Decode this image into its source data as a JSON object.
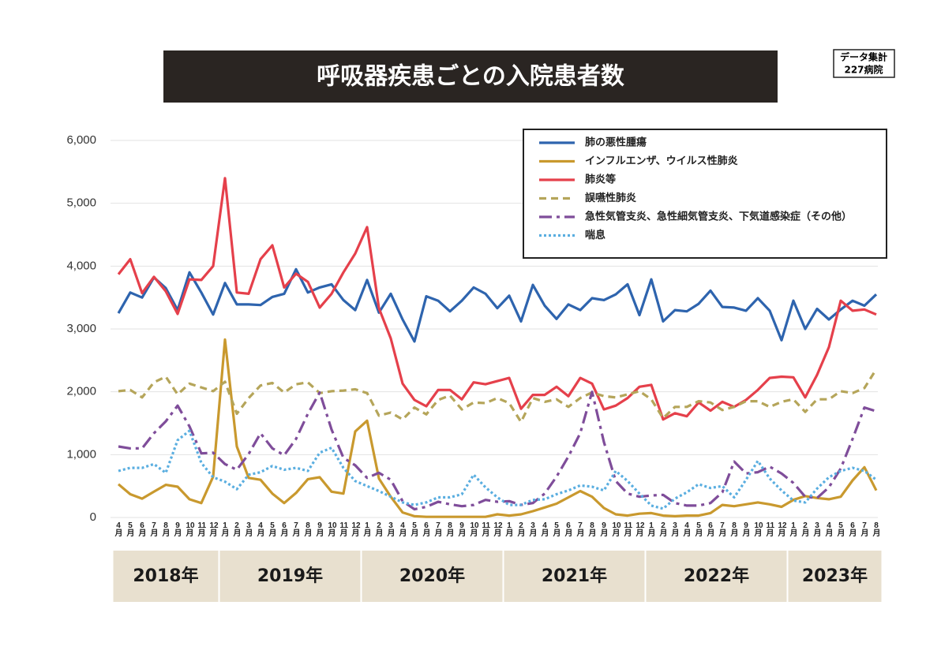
{
  "chart_data": {
    "type": "line",
    "title": "呼吸器疾患ごとの入院患者数",
    "annotation": [
      "データ集計",
      "227病院"
    ],
    "categories": [
      "4月",
      "5月",
      "6月",
      "7月",
      "8月",
      "9月",
      "10月",
      "11月",
      "12月",
      "1月",
      "2月",
      "3月",
      "4月",
      "5月",
      "6月",
      "7月",
      "8月",
      "9月",
      "10月",
      "11月",
      "12月",
      "1月",
      "2月",
      "3月",
      "4月",
      "5月",
      "6月",
      "7月",
      "8月",
      "9月",
      "10月",
      "11月",
      "12月",
      "1月",
      "2月",
      "3月",
      "4月",
      "5月",
      "6月",
      "7月",
      "8月",
      "9月",
      "10月",
      "11月",
      "12月",
      "1月",
      "2月",
      "3月",
      "4月",
      "5月",
      "6月",
      "7月",
      "8月",
      "9月",
      "10月",
      "11月",
      "12月",
      "1月",
      "2月",
      "3月",
      "4月",
      "5月",
      "6月",
      "7月",
      "8月"
    ],
    "years": [
      "2018年",
      "2019年",
      "2020年",
      "2021年",
      "2022年",
      "2023年"
    ],
    "ylim": [
      0,
      6000
    ],
    "yticks": [
      0,
      {
        "value": 1000,
        "label": "1,000"
      },
      {
        "value": 2000,
        "label": "2,000"
      },
      {
        "value": 3000,
        "label": "3,000"
      },
      {
        "value": 4000,
        "label": "4,000"
      },
      {
        "value": 5000,
        "label": "5,000"
      },
      {
        "value": 6000,
        "label": "6,000"
      }
    ],
    "grid": true,
    "legend": "top-right",
    "series": [
      {
        "name": "肺の悪性腫瘍",
        "color": "#2e64ae",
        "dash": "solid",
        "values": [
          3250,
          3580,
          3500,
          3820,
          3650,
          3300,
          3900,
          3580,
          3230,
          3730,
          3390,
          3390,
          3380,
          3510,
          3560,
          3950,
          3580,
          3660,
          3710,
          3460,
          3300,
          3780,
          3260,
          3560,
          3150,
          2800,
          3520,
          3450,
          3280,
          3450,
          3660,
          3560,
          3330,
          3530,
          3120,
          3700,
          3370,
          3160,
          3390,
          3300,
          3490,
          3460,
          3550,
          3710,
          3220,
          3790,
          3120,
          3300,
          3280,
          3400,
          3610,
          3350,
          3340,
          3290,
          3490,
          3290,
          2820,
          3450,
          3000,
          3320,
          3150,
          3310,
          3450,
          3370,
          3550
        ]
      },
      {
        "name": "インフルエンザ、ウイルス性肺炎",
        "color": "#c9992e",
        "dash": "solid",
        "values": [
          530,
          370,
          300,
          410,
          520,
          490,
          290,
          230,
          650,
          2830,
          1130,
          630,
          600,
          380,
          230,
          390,
          610,
          640,
          410,
          380,
          1370,
          1540,
          620,
          330,
          80,
          20,
          10,
          10,
          10,
          10,
          10,
          10,
          50,
          30,
          50,
          100,
          160,
          220,
          320,
          420,
          330,
          150,
          50,
          30,
          60,
          70,
          30,
          20,
          30,
          30,
          70,
          200,
          180,
          210,
          240,
          210,
          170,
          280,
          340,
          310,
          290,
          330,
          590,
          800,
          430
        ]
      },
      {
        "name": "肺炎等",
        "color": "#e5404b",
        "dash": "solid",
        "values": [
          3870,
          4110,
          3570,
          3830,
          3600,
          3240,
          3790,
          3780,
          4000,
          5400,
          3580,
          3560,
          4110,
          4330,
          3660,
          3880,
          3750,
          3340,
          3560,
          3900,
          4200,
          4620,
          3330,
          2850,
          2130,
          1870,
          1770,
          2030,
          2030,
          1880,
          2150,
          2120,
          2170,
          2220,
          1730,
          1950,
          1950,
          2080,
          1930,
          2220,
          2130,
          1720,
          1780,
          1900,
          2080,
          2110,
          1560,
          1660,
          1610,
          1830,
          1700,
          1840,
          1760,
          1870,
          2030,
          2220,
          2240,
          2230,
          1910,
          2270,
          2710,
          3450,
          3290,
          3310,
          3230
        ]
      },
      {
        "name": "誤嚥性肺炎",
        "color": "#b5a55a",
        "dash": "dashed",
        "values": [
          2010,
          2030,
          1910,
          2150,
          2240,
          1960,
          2130,
          2070,
          2010,
          2160,
          1650,
          1900,
          2100,
          2140,
          1990,
          2120,
          2150,
          1980,
          2010,
          2020,
          2040,
          1980,
          1620,
          1670,
          1560,
          1750,
          1640,
          1870,
          1940,
          1720,
          1830,
          1820,
          1900,
          1820,
          1520,
          1900,
          1840,
          1880,
          1760,
          1900,
          1990,
          1930,
          1910,
          1960,
          2010,
          1880,
          1580,
          1760,
          1760,
          1850,
          1830,
          1710,
          1760,
          1850,
          1850,
          1760,
          1840,
          1880,
          1680,
          1880,
          1880,
          2010,
          1980,
          2060,
          2360
        ]
      },
      {
        "name": "急性気管支炎、急性細気管支炎、下気道感染症（その他）",
        "color": "#7f4d9a",
        "dash": "dashdot",
        "values": [
          1130,
          1100,
          1100,
          1340,
          1530,
          1780,
          1450,
          1020,
          1030,
          850,
          760,
          1010,
          1340,
          1100,
          990,
          1250,
          1650,
          1990,
          1400,
          950,
          830,
          630,
          710,
          600,
          260,
          130,
          170,
          250,
          210,
          180,
          200,
          280,
          250,
          260,
          200,
          230,
          380,
          650,
          970,
          1340,
          2000,
          1200,
          580,
          380,
          330,
          350,
          360,
          230,
          190,
          190,
          230,
          400,
          890,
          700,
          720,
          810,
          700,
          550,
          330,
          310,
          480,
          780,
          1250,
          1750,
          1690
        ]
      },
      {
        "name": "喘息",
        "color": "#5aaee0",
        "dash": "dotted",
        "values": [
          740,
          790,
          790,
          850,
          710,
          1230,
          1380,
          870,
          640,
          570,
          450,
          680,
          720,
          820,
          760,
          790,
          740,
          1030,
          1110,
          790,
          580,
          500,
          420,
          330,
          240,
          200,
          240,
          320,
          320,
          370,
          680,
          480,
          320,
          200,
          200,
          280,
          290,
          370,
          430,
          510,
          490,
          430,
          740,
          580,
          380,
          190,
          140,
          300,
          400,
          530,
          470,
          500,
          320,
          600,
          900,
          620,
          430,
          270,
          240,
          460,
          640,
          740,
          790,
          740,
          600
        ]
      }
    ]
  }
}
